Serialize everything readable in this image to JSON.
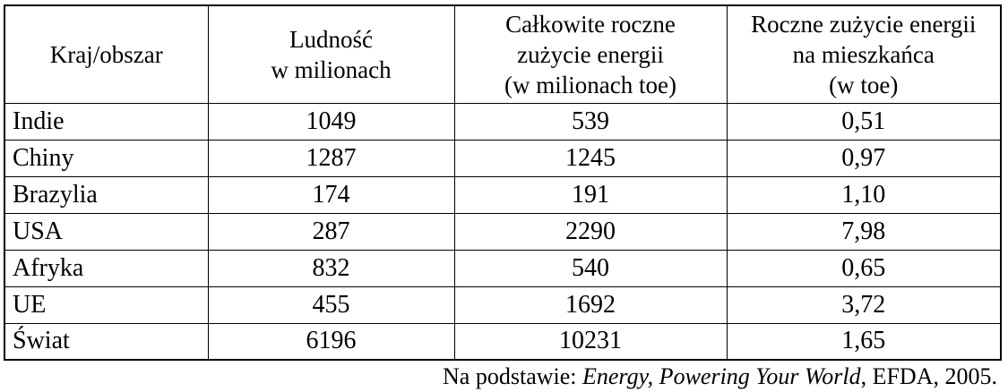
{
  "table": {
    "headers": [
      "Kraj/obszar",
      "Ludność\nw milionach",
      "Całkowite roczne\nzużycie energii\n(w milionach toe)",
      "Roczne zużycie energii\nna mieszkańca\n(w toe)"
    ],
    "rows": [
      [
        "Indie",
        "1049",
        "539",
        "0,51"
      ],
      [
        "Chiny",
        "1287",
        "1245",
        "0,97"
      ],
      [
        "Brazylia",
        "174",
        "191",
        "1,10"
      ],
      [
        "USA",
        "287",
        "2290",
        "7,98"
      ],
      [
        "Afryka",
        "832",
        "540",
        "0,65"
      ],
      [
        "UE",
        "455",
        "1692",
        "3,72"
      ],
      [
        "Świat",
        "6196",
        "10231",
        "1,65"
      ]
    ]
  },
  "footer": {
    "prefix": "Na podstawie: ",
    "source_title": "Energy, Powering Your World",
    "suffix": ", EFDA, 2005."
  },
  "chart_data": {
    "type": "table",
    "title": "",
    "columns": [
      "Kraj/obszar",
      "Ludność w milionach",
      "Całkowite roczne zużycie energii (w milionach toe)",
      "Roczne zużycie energii na mieszkańca (w toe)"
    ],
    "categories": [
      "Indie",
      "Chiny",
      "Brazylia",
      "USA",
      "Afryka",
      "UE",
      "Świat"
    ],
    "series": [
      {
        "name": "Ludność w milionach",
        "values": [
          1049,
          1287,
          174,
          287,
          832,
          455,
          6196
        ]
      },
      {
        "name": "Całkowite roczne zużycie energii (w milionach toe)",
        "values": [
          539,
          1245,
          191,
          2290,
          540,
          1692,
          10231
        ]
      },
      {
        "name": "Roczne zużycie energii na mieszkańca (w toe)",
        "values": [
          0.51,
          0.97,
          1.1,
          7.98,
          0.65,
          3.72,
          1.65
        ]
      }
    ],
    "source": "Na podstawie: Energy, Powering Your World, EFDA, 2005."
  }
}
